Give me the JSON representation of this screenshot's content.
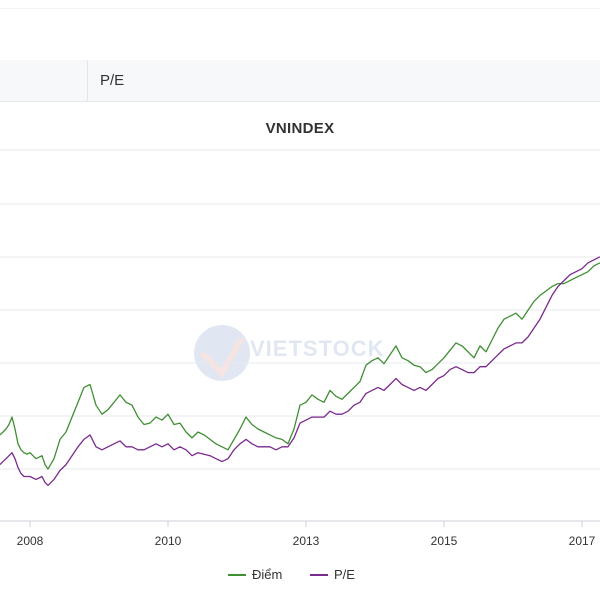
{
  "tabs": {
    "pe_label": "P/E"
  },
  "watermark": {
    "text": "VIETSTOCK",
    "subtext": ""
  },
  "chart_data": {
    "type": "line",
    "title": "VNINDEX",
    "xlabel": "",
    "ylabel": "",
    "x_ticks": [
      "2008",
      "2010",
      "2013",
      "2015",
      "2017"
    ],
    "x_tick_positions": [
      0.05,
      0.28,
      0.51,
      0.74,
      0.97
    ],
    "legend_position": "bottom-center",
    "grid": true,
    "series": [
      {
        "name": "Điểm",
        "color": "#3f8f33",
        "x": [
          0,
          0.005,
          0.01,
          0.015,
          0.02,
          0.025,
          0.03,
          0.035,
          0.04,
          0.045,
          0.05,
          0.06,
          0.07,
          0.075,
          0.08,
          0.09,
          0.1,
          0.11,
          0.12,
          0.13,
          0.14,
          0.15,
          0.16,
          0.17,
          0.18,
          0.19,
          0.2,
          0.21,
          0.22,
          0.23,
          0.24,
          0.25,
          0.26,
          0.27,
          0.28,
          0.29,
          0.3,
          0.31,
          0.32,
          0.33,
          0.34,
          0.35,
          0.36,
          0.37,
          0.38,
          0.39,
          0.4,
          0.41,
          0.42,
          0.43,
          0.44,
          0.45,
          0.46,
          0.47,
          0.48,
          0.49,
          0.5,
          0.51,
          0.52,
          0.53,
          0.54,
          0.55,
          0.56,
          0.57,
          0.58,
          0.59,
          0.6,
          0.61,
          0.62,
          0.63,
          0.64,
          0.65,
          0.66,
          0.67,
          0.68,
          0.69,
          0.7,
          0.71,
          0.72,
          0.73,
          0.74,
          0.75,
          0.76,
          0.77,
          0.78,
          0.79,
          0.8,
          0.81,
          0.82,
          0.83,
          0.84,
          0.85,
          0.86,
          0.87,
          0.88,
          0.89,
          0.9,
          0.91,
          0.92,
          0.93,
          0.94,
          0.95,
          0.96,
          0.97,
          0.98,
          0.99,
          1.0
        ],
        "values": [
          0.58,
          0.6,
          0.62,
          0.65,
          0.7,
          0.62,
          0.52,
          0.48,
          0.46,
          0.45,
          0.46,
          0.42,
          0.44,
          0.38,
          0.35,
          0.42,
          0.55,
          0.6,
          0.7,
          0.8,
          0.9,
          0.92,
          0.78,
          0.72,
          0.75,
          0.8,
          0.85,
          0.8,
          0.78,
          0.7,
          0.65,
          0.66,
          0.7,
          0.68,
          0.72,
          0.65,
          0.66,
          0.6,
          0.56,
          0.6,
          0.58,
          0.55,
          0.52,
          0.5,
          0.48,
          0.55,
          0.62,
          0.7,
          0.65,
          0.62,
          0.6,
          0.58,
          0.56,
          0.55,
          0.52,
          0.62,
          0.78,
          0.8,
          0.85,
          0.82,
          0.8,
          0.88,
          0.84,
          0.82,
          0.86,
          0.9,
          0.94,
          1.05,
          1.08,
          1.1,
          1.06,
          1.12,
          1.18,
          1.1,
          1.08,
          1.05,
          1.04,
          1.0,
          1.02,
          1.06,
          1.1,
          1.15,
          1.2,
          1.18,
          1.14,
          1.1,
          1.18,
          1.14,
          1.22,
          1.3,
          1.36,
          1.38,
          1.4,
          1.36,
          1.42,
          1.48,
          1.52,
          1.55,
          1.58,
          1.6,
          1.6,
          1.62,
          1.64,
          1.66,
          1.68,
          1.72,
          1.74
        ]
      },
      {
        "name": "P/E",
        "color": "#7a2a8e",
        "x": [
          0,
          0.005,
          0.01,
          0.015,
          0.02,
          0.025,
          0.03,
          0.035,
          0.04,
          0.045,
          0.05,
          0.06,
          0.07,
          0.075,
          0.08,
          0.09,
          0.1,
          0.11,
          0.12,
          0.13,
          0.14,
          0.15,
          0.16,
          0.17,
          0.18,
          0.19,
          0.2,
          0.21,
          0.22,
          0.23,
          0.24,
          0.25,
          0.26,
          0.27,
          0.28,
          0.29,
          0.3,
          0.31,
          0.32,
          0.33,
          0.34,
          0.35,
          0.36,
          0.37,
          0.38,
          0.39,
          0.4,
          0.41,
          0.42,
          0.43,
          0.44,
          0.45,
          0.46,
          0.47,
          0.48,
          0.49,
          0.5,
          0.51,
          0.52,
          0.53,
          0.54,
          0.55,
          0.56,
          0.57,
          0.58,
          0.59,
          0.6,
          0.61,
          0.62,
          0.63,
          0.64,
          0.65,
          0.66,
          0.67,
          0.68,
          0.69,
          0.7,
          0.71,
          0.72,
          0.73,
          0.74,
          0.75,
          0.76,
          0.77,
          0.78,
          0.79,
          0.8,
          0.81,
          0.82,
          0.83,
          0.84,
          0.85,
          0.86,
          0.87,
          0.88,
          0.89,
          0.9,
          0.91,
          0.92,
          0.93,
          0.94,
          0.95,
          0.96,
          0.97,
          0.98,
          0.99,
          1.0
        ],
        "values": [
          0.38,
          0.4,
          0.42,
          0.44,
          0.46,
          0.42,
          0.36,
          0.32,
          0.3,
          0.3,
          0.3,
          0.28,
          0.3,
          0.26,
          0.24,
          0.28,
          0.34,
          0.38,
          0.44,
          0.5,
          0.55,
          0.58,
          0.5,
          0.48,
          0.5,
          0.52,
          0.54,
          0.5,
          0.5,
          0.48,
          0.48,
          0.5,
          0.52,
          0.5,
          0.52,
          0.48,
          0.5,
          0.48,
          0.44,
          0.46,
          0.45,
          0.44,
          0.42,
          0.4,
          0.42,
          0.48,
          0.52,
          0.55,
          0.52,
          0.5,
          0.5,
          0.5,
          0.48,
          0.5,
          0.5,
          0.56,
          0.66,
          0.68,
          0.7,
          0.7,
          0.7,
          0.74,
          0.72,
          0.72,
          0.74,
          0.78,
          0.8,
          0.86,
          0.88,
          0.9,
          0.88,
          0.92,
          0.96,
          0.92,
          0.9,
          0.88,
          0.9,
          0.88,
          0.92,
          0.96,
          0.98,
          1.02,
          1.04,
          1.02,
          1.0,
          1.0,
          1.04,
          1.04,
          1.08,
          1.12,
          1.16,
          1.18,
          1.2,
          1.2,
          1.24,
          1.3,
          1.36,
          1.44,
          1.52,
          1.58,
          1.62,
          1.66,
          1.68,
          1.7,
          1.74,
          1.76,
          1.78
        ]
      }
    ],
    "ylim": [
      0,
      2.5
    ]
  }
}
